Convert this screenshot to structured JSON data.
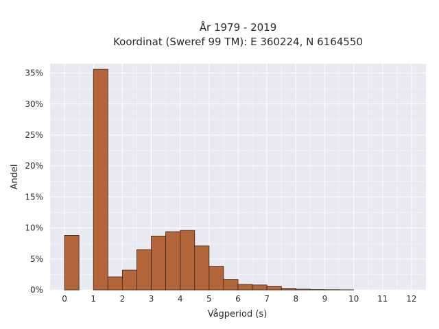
{
  "chart_data": {
    "type": "bar",
    "title_line1": "År 1979 - 2019",
    "title_line2": "Koordinat (Sweref 99 TM): E 360224, N 6164550",
    "xlabel": "Vågperiod (s)",
    "ylabel": "Andel",
    "xlim": [
      -0.5,
      12.5
    ],
    "ylim": [
      0,
      36.5
    ],
    "bin_width": 0.5,
    "x_ticks": [
      0,
      1,
      2,
      3,
      4,
      5,
      6,
      7,
      8,
      9,
      10,
      11,
      12
    ],
    "x_tick_labels": [
      "0",
      "1",
      "2",
      "3",
      "4",
      "5",
      "6",
      "7",
      "8",
      "9",
      "10",
      "11",
      "12"
    ],
    "y_ticks": [
      0,
      5,
      10,
      15,
      20,
      25,
      30,
      35
    ],
    "y_tick_labels": [
      "0%",
      "5%",
      "10%",
      "15%",
      "20%",
      "25%",
      "30%",
      "35%"
    ],
    "grid": true,
    "bar_color": "#b5653a",
    "bar_edge_color": "#3a2418",
    "background_color": "#e9e9f1",
    "bins": [
      {
        "x0": 0.0,
        "value": 8.8
      },
      {
        "x0": 1.0,
        "value": 35.6
      },
      {
        "x0": 1.5,
        "value": 2.1
      },
      {
        "x0": 2.0,
        "value": 3.2
      },
      {
        "x0": 2.5,
        "value": 6.5
      },
      {
        "x0": 3.0,
        "value": 8.7
      },
      {
        "x0": 3.5,
        "value": 9.4
      },
      {
        "x0": 4.0,
        "value": 9.6
      },
      {
        "x0": 4.5,
        "value": 7.1
      },
      {
        "x0": 5.0,
        "value": 3.8
      },
      {
        "x0": 5.5,
        "value": 1.7
      },
      {
        "x0": 6.0,
        "value": 0.9
      },
      {
        "x0": 6.5,
        "value": 0.8
      },
      {
        "x0": 7.0,
        "value": 0.6
      },
      {
        "x0": 7.5,
        "value": 0.25
      },
      {
        "x0": 8.0,
        "value": 0.12
      },
      {
        "x0": 8.5,
        "value": 0.06
      },
      {
        "x0": 9.0,
        "value": 0.04
      },
      {
        "x0": 9.5,
        "value": 0.02
      }
    ]
  }
}
